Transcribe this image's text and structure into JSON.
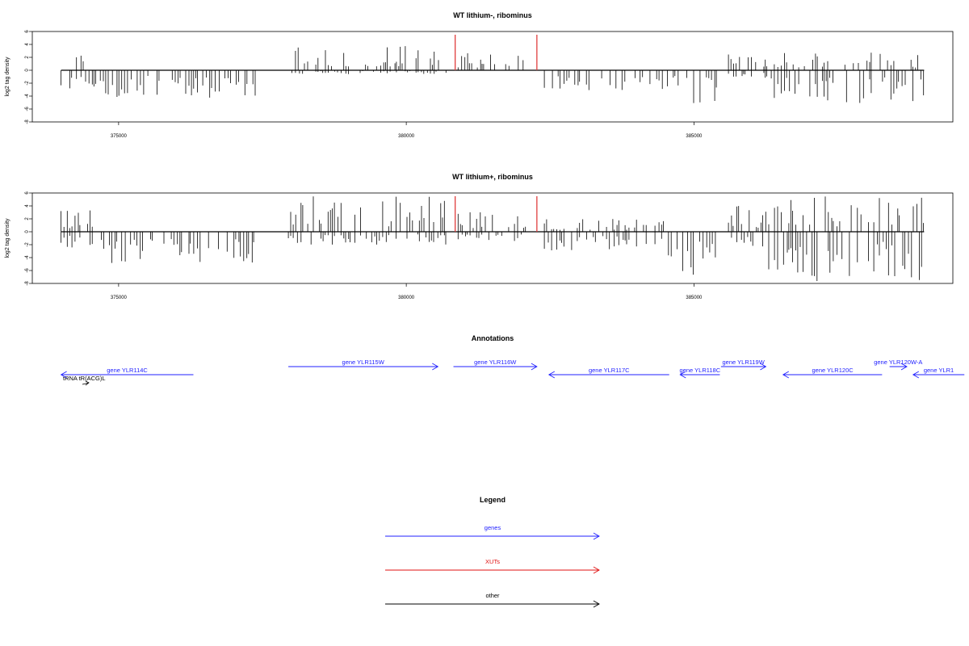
{
  "chart_data": [
    {
      "type": "bar",
      "title": "WT lithium-, ribominus",
      "ylabel": "log2 tag density",
      "xlabel": "",
      "xlim": [
        373500,
        389500
      ],
      "ylim": [
        -8,
        6
      ],
      "xticks": [
        "375000",
        "380000",
        "385000"
      ],
      "yticks": [
        "6",
        "4",
        "2",
        "0",
        "-2",
        "-4",
        "-6",
        "-8"
      ],
      "highlight_color": "#e03c3c",
      "highlights": [
        {
          "x": 380850,
          "value": 5.5
        },
        {
          "x": 382270,
          "value": 5.5
        }
      ],
      "density_profile": [
        {
          "from": 374000,
          "to": 374600,
          "positive": 2.8,
          "negative": 3.4
        },
        {
          "from": 374600,
          "to": 377400,
          "positive": 0,
          "negative": 4.3
        },
        {
          "from": 377950,
          "to": 380700,
          "positive": 3.9,
          "negative": 0.6
        },
        {
          "from": 380900,
          "to": 382100,
          "positive": 2.8,
          "negative": 0
        },
        {
          "from": 382400,
          "to": 384800,
          "positive": 0,
          "negative": 3.1
        },
        {
          "from": 384800,
          "to": 385400,
          "positive": 0,
          "negative": 5.5
        },
        {
          "from": 385600,
          "to": 386300,
          "positive": 3.5,
          "negative": 1.5
        },
        {
          "from": 386300,
          "to": 389000,
          "positive": 2.8,
          "negative": 5.2
        }
      ]
    },
    {
      "type": "bar",
      "title": "WT lithium+, ribominus",
      "ylabel": "log2 tag density",
      "xlabel": "",
      "xlim": [
        373500,
        389500
      ],
      "ylim": [
        -8,
        6
      ],
      "xticks": [
        "375000",
        "380000",
        "385000"
      ],
      "yticks": [
        "6",
        "4",
        "2",
        "0",
        "-2",
        "-4",
        "-6",
        "-8"
      ],
      "highlight_color": "#e03c3c",
      "highlights": [
        {
          "x": 380850,
          "value": 5.5
        },
        {
          "x": 382270,
          "value": 5.5
        }
      ],
      "density_profile": [
        {
          "from": 374000,
          "to": 374600,
          "positive": 3.8,
          "negative": 2.5
        },
        {
          "from": 374600,
          "to": 377400,
          "positive": 0,
          "negative": 5.0
        },
        {
          "from": 377950,
          "to": 380700,
          "positive": 5.5,
          "negative": 2.0
        },
        {
          "from": 380900,
          "to": 382100,
          "positive": 3.5,
          "negative": 1.5
        },
        {
          "from": 382400,
          "to": 384500,
          "positive": 2.0,
          "negative": 3.0
        },
        {
          "from": 384500,
          "to": 385400,
          "positive": 0,
          "negative": 6.8
        },
        {
          "from": 385600,
          "to": 386300,
          "positive": 4.0,
          "negative": 2.5
        },
        {
          "from": 386300,
          "to": 389000,
          "positive": 5.5,
          "negative": 7.8
        }
      ]
    }
  ],
  "annotations": {
    "title": "Annotations",
    "features": [
      {
        "label": "tRNA tR(ACG)L",
        "kind": "other",
        "start": 374000,
        "end": 374300,
        "strand": "+",
        "row": 0
      },
      {
        "label": "gene YLR114C",
        "kind": "genes",
        "start": 374000,
        "end": 376300,
        "strand": "-",
        "row": 1
      },
      {
        "label": "gene YLR115W",
        "kind": "genes",
        "start": 377950,
        "end": 380550,
        "strand": "+",
        "row": 2
      },
      {
        "label": "gene YLR116W",
        "kind": "genes",
        "start": 380820,
        "end": 382270,
        "strand": "+",
        "row": 2
      },
      {
        "label": "gene YLR117C",
        "kind": "genes",
        "start": 382480,
        "end": 384570,
        "strand": "-",
        "row": 1
      },
      {
        "label": "gene YLR118C",
        "kind": "genes",
        "start": 384760,
        "end": 385450,
        "strand": "-",
        "row": 1
      },
      {
        "label": "gene YLR119W",
        "kind": "genes",
        "start": 385470,
        "end": 386250,
        "strand": "+",
        "row": 2
      },
      {
        "label": "gene YLR120C",
        "kind": "genes",
        "start": 386550,
        "end": 388270,
        "strand": "-",
        "row": 1
      },
      {
        "label": "gene YLR120W-A",
        "kind": "genes",
        "start": 388400,
        "end": 388700,
        "strand": "+",
        "row": 2
      },
      {
        "label": "gene YLR1",
        "kind": "genes",
        "start": 388810,
        "end": 389700,
        "strand": "-",
        "row": 1
      }
    ]
  },
  "legend": {
    "title": "Legend",
    "items": [
      {
        "label": "genes",
        "color": "#2020ff"
      },
      {
        "label": "XUTs",
        "color": "#e01010"
      },
      {
        "label": "other",
        "color": "#000000"
      }
    ]
  }
}
